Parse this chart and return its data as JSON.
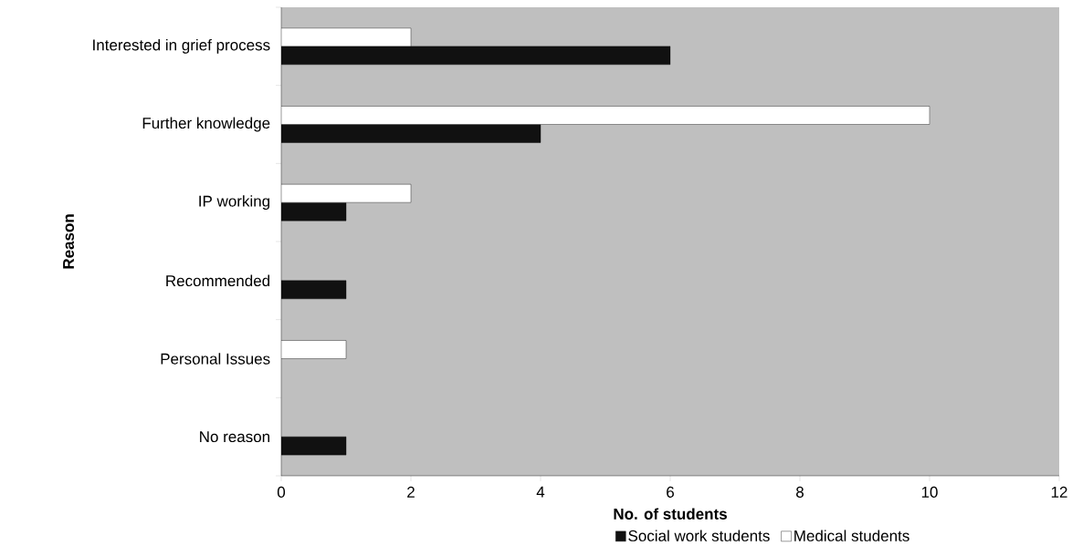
{
  "chart_data": {
    "type": "bar",
    "orientation": "horizontal",
    "xlabel": "No. of students",
    "ylabel": "Reason",
    "categories": [
      "Interested in grief process",
      "Further knowledge",
      "IP working",
      "Recommended",
      "Personal Issues",
      "No reason"
    ],
    "series": [
      {
        "name": "Social work students",
        "color": "#111111",
        "values": [
          6,
          4,
          1,
          1,
          null,
          1
        ]
      },
      {
        "name": "Medical students",
        "color": "#ffffff",
        "values": [
          2,
          10,
          2,
          null,
          1,
          null
        ]
      }
    ],
    "xlim": [
      0,
      12
    ],
    "xticks": [
      0,
      2,
      4,
      6,
      8,
      10,
      12
    ],
    "grid": false,
    "legend": "bottom"
  }
}
